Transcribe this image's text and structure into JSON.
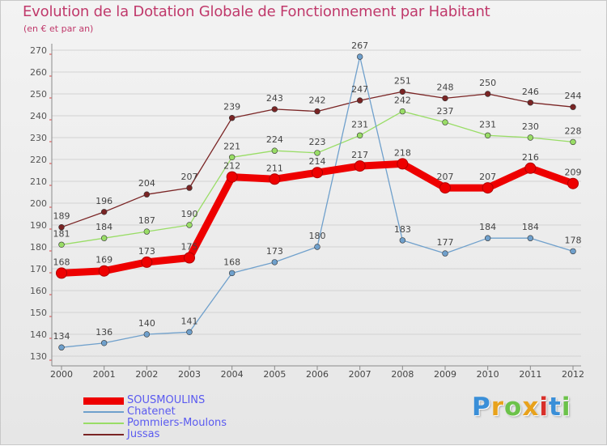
{
  "title": "Evolution de la Dotation Globale de Fonctionnement par Habitant",
  "subtitle": "(en € et par an)",
  "chart_data": {
    "type": "line",
    "title": "Evolution de la Dotation Globale de Fonctionnement par Habitant",
    "subtitle": "(en € et par an)",
    "xlabel": "",
    "ylabel": "",
    "x": [
      2000,
      2001,
      2002,
      2003,
      2004,
      2005,
      2006,
      2007,
      2008,
      2009,
      2010,
      2011,
      2012
    ],
    "x_tick_labels": [
      "2000",
      "2001",
      "2002",
      "2003",
      "2004",
      "2005",
      "2006",
      "2007",
      "2008",
      "2009",
      "2010",
      "2011",
      "2012"
    ],
    "ylim": [
      130,
      270
    ],
    "y_ticks": [
      130,
      140,
      150,
      160,
      170,
      180,
      190,
      200,
      210,
      220,
      230,
      240,
      250,
      260,
      270
    ],
    "grid": "horizontal",
    "legend_position": "bottom-left",
    "series": [
      {
        "name": "Jussas",
        "color": "#7a2424",
        "values": [
          189,
          196,
          204,
          207,
          239,
          243,
          242,
          247,
          251,
          248,
          250,
          246,
          244
        ]
      },
      {
        "name": "Pommiers-Moulons",
        "color": "#99dd66",
        "values": [
          181,
          184,
          187,
          190,
          221,
          224,
          223,
          231,
          242,
          237,
          231,
          230,
          228
        ]
      },
      {
        "name": "Chatenet",
        "color": "#6fa0cc",
        "values": [
          134,
          136,
          140,
          141,
          168,
          173,
          180,
          267,
          183,
          177,
          184,
          184,
          178
        ]
      },
      {
        "name": "SOUSMOULINS",
        "color": "#ee0000",
        "emphasis": true,
        "values": [
          168,
          169,
          173,
          175,
          212,
          211,
          214,
          217,
          218,
          207,
          207,
          216,
          209
        ]
      }
    ],
    "legend": [
      "SOUSMOULINS",
      "Chatenet",
      "Pommiers-Moulons",
      "Jussas"
    ]
  },
  "logo": {
    "letters": [
      "P",
      "r",
      "o",
      "x",
      "i",
      "t",
      "i"
    ],
    "colors": [
      "#3a8fd8",
      "#e8a21c",
      "#6cc24a",
      "#e8a21c",
      "#d8302a",
      "#3a8fd8",
      "#6cc24a"
    ]
  }
}
